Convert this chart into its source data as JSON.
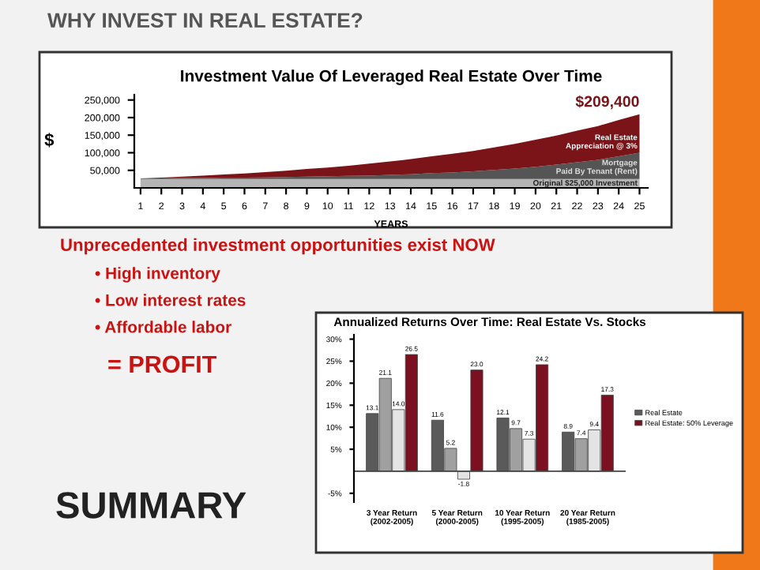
{
  "chart_data": [
    {
      "type": "other",
      "title": "WHY INVEST IN REAL ESTATE?",
      "annotations": [
        "Unprecedented investment opportunities exist NOW",
        "• High inventory",
        "• Low interest rates",
        "• Affordable labor",
        "= PROFIT",
        "SUMMARY"
      ]
    },
    {
      "type": "area",
      "stacked": true,
      "title": "Investment Value Of Leveraged Real Estate Over Time",
      "xlabel": "YEARS",
      "ylabel": "$",
      "x": [
        1,
        2,
        3,
        4,
        5,
        6,
        7,
        8,
        9,
        10,
        11,
        12,
        13,
        14,
        15,
        16,
        17,
        18,
        19,
        20,
        21,
        22,
        23,
        24,
        25
      ],
      "series": [
        {
          "color": "#b4b4b4",
          "values": [
            25000,
            25000,
            25000,
            25000,
            25000,
            25000,
            25000,
            25000,
            25000,
            25000,
            25000,
            25000,
            25000,
            25000,
            25000,
            25000,
            25000,
            25000,
            25000,
            25000,
            25000,
            25000,
            25000,
            25000,
            25000
          ]
        },
        {
          "color": "#555555",
          "values": [
            2000,
            2000,
            3000,
            3000,
            4000,
            4000,
            5000,
            6000,
            7000,
            8000,
            9000,
            10000,
            12000,
            14000,
            17000,
            19000,
            22000,
            26000,
            30000,
            35000,
            41000,
            48000,
            55000,
            65000,
            75000
          ]
        },
        {
          "color": "#7a1418",
          "values": [
            0,
            2000,
            4000,
            7000,
            9000,
            12000,
            15000,
            18000,
            22000,
            25000,
            29000,
            34000,
            38000,
            43000,
            48000,
            53000,
            58000,
            64000,
            70000,
            77000,
            83000,
            90000,
            96000,
            103000,
            109400
          ]
        }
      ],
      "xlim": [
        0.7,
        25.4
      ],
      "xticks": [
        1,
        2,
        3,
        4,
        5,
        6,
        7,
        8,
        9,
        10,
        11,
        12,
        13,
        14,
        15,
        16,
        17,
        18,
        19,
        20,
        21,
        22,
        23,
        24,
        25
      ],
      "ylim": [
        0,
        265000
      ],
      "yticks": [
        {
          "value": 50000,
          "label": "50,000"
        },
        {
          "value": 100000,
          "label": "100,000"
        },
        {
          "value": 150000,
          "label": "150,000"
        },
        {
          "value": 200000,
          "label": "200,000"
        },
        {
          "value": 250000,
          "label": "250,000"
        }
      ],
      "grid": false,
      "legend": false,
      "annotations": [
        {
          "text": "$209,400",
          "x": 25,
          "y": 209400
        },
        "Real Estate\nAppreciation @ 3%",
        "Mortgage\nPaid By Tenant (Rent)",
        "Original $25,000 Investment"
      ]
    },
    {
      "type": "bar",
      "title": "Annualized Returns Over Time: Real Estate Vs. Stocks",
      "categories": [
        "3 Year Return\n(2002-2005)",
        "5 Year Return\n(2000-2005)",
        "10 Year Return\n(1995-2005)",
        "20 Year Return\n(1985-2005)"
      ],
      "series": [
        {
          "name": "Real Estate",
          "color": "#5a5a5a",
          "values": [
            13.1,
            11.6,
            12.1,
            8.9
          ],
          "value_labels": [
            "13.1",
            "11.6",
            "12.1",
            "8.9"
          ]
        },
        {
          "color": "#a0a0a0",
          "values": [
            21.1,
            5.2,
            9.7,
            7.4
          ],
          "value_labels": [
            "21.1",
            "5.2",
            "9.7",
            "7.4"
          ]
        },
        {
          "color": "#e4e4e4",
          "values": [
            14,
            -1.8,
            7.3,
            9.4
          ],
          "value_labels": [
            "14.0",
            "-1.8",
            "7.3",
            "9.4"
          ]
        },
        {
          "name": "Real Estate: 50% Leverage",
          "color": "#7a1020",
          "values": [
            26.5,
            23,
            24.2,
            17.3
          ],
          "value_labels": [
            "26.5",
            "23.0",
            "24.2",
            "17.3"
          ]
        }
      ],
      "ylim": [
        -7,
        31
      ],
      "yticks": [
        {
          "value": -5,
          "label": "-5%"
        },
        {
          "value": 5,
          "label": "5%"
        },
        {
          "value": 10,
          "label": "10%"
        },
        {
          "value": 15,
          "label": "15%"
        },
        {
          "value": 20,
          "label": "20%"
        },
        {
          "value": 25,
          "label": "25%"
        },
        {
          "value": 30,
          "label": "30%"
        }
      ],
      "grid": false,
      "legend": "right"
    }
  ]
}
